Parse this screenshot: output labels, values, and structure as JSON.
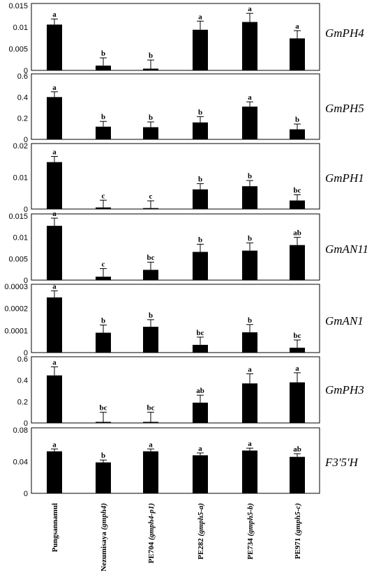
{
  "chart_data": {
    "type": "bar",
    "categories": [
      {
        "name": "Pungsannamul",
        "genotype": ""
      },
      {
        "name": "Nezumisaya",
        "genotype": "gmph4"
      },
      {
        "name": "PE704",
        "genotype": "gmph4-p1"
      },
      {
        "name": "PE282",
        "genotype": "gmph5-a"
      },
      {
        "name": "PE734",
        "genotype": "gmph5-b"
      },
      {
        "name": "PE971",
        "genotype": "gmph5-c"
      }
    ],
    "panels": [
      {
        "gene": "GmPH4",
        "ylim": [
          0,
          0.015
        ],
        "ticks": [
          "0",
          "0.005",
          "0.01",
          "0.015"
        ],
        "tick_values": [
          0,
          0.005,
          0.01,
          0.015
        ],
        "values": [
          0.0106,
          0.0011,
          0.0004,
          0.0094,
          0.0112,
          0.0074
        ],
        "errors": [
          0.0013,
          0.0018,
          0.002,
          0.002,
          0.002,
          0.0018
        ],
        "letters": [
          "a",
          "b",
          "b",
          "a",
          "a",
          "a"
        ]
      },
      {
        "gene": "GmPH5",
        "ylim": [
          0,
          0.6
        ],
        "ticks": [
          "0",
          "0.2",
          "0.4",
          "0.6"
        ],
        "tick_values": [
          0,
          0.2,
          0.4,
          0.6
        ],
        "values": [
          0.4,
          0.12,
          0.115,
          0.16,
          0.31,
          0.095
        ],
        "errors": [
          0.05,
          0.05,
          0.05,
          0.055,
          0.045,
          0.05
        ],
        "letters": [
          "a",
          "b",
          "b",
          "b",
          "a",
          "b"
        ]
      },
      {
        "gene": "GmPH1",
        "ylim": [
          0,
          0.02
        ],
        "ticks": [
          "0",
          "0.01",
          "0.02"
        ],
        "tick_values": [
          0,
          0.01,
          0.02
        ],
        "values": [
          0.0148,
          0.0005,
          0.0003,
          0.0062,
          0.0072,
          0.0027
        ],
        "errors": [
          0.0018,
          0.0023,
          0.0023,
          0.0018,
          0.0018,
          0.0018
        ],
        "letters": [
          "a",
          "c",
          "c",
          "b",
          "b",
          "bc"
        ]
      },
      {
        "gene": "GmAN11",
        "ylim": [
          0,
          0.015
        ],
        "ticks": [
          "0",
          "0.005",
          "0.01",
          "0.015"
        ],
        "tick_values": [
          0,
          0.005,
          0.01,
          0.015
        ],
        "values": [
          0.0127,
          0.0008,
          0.0024,
          0.0066,
          0.0069,
          0.0082
        ],
        "errors": [
          0.0018,
          0.0019,
          0.0018,
          0.0018,
          0.0018,
          0.0018
        ],
        "letters": [
          "a",
          "c",
          "bc",
          "b",
          "b",
          "ab"
        ]
      },
      {
        "gene": "GmAN1",
        "ylim": [
          0,
          0.0003
        ],
        "ticks": [
          "0",
          "0.0001",
          "0.0002",
          "0.0003"
        ],
        "tick_values": [
          0,
          0.0001,
          0.0002,
          0.0003
        ],
        "values": [
          0.00025,
          9e-05,
          0.000117,
          3.5e-05,
          9.2e-05,
          2.2e-05
        ],
        "errors": [
          3e-05,
          3.5e-05,
          3.2e-05,
          3.5e-05,
          3.5e-05,
          3.5e-05
        ],
        "letters": [
          "a",
          "b",
          "b",
          "bc",
          "b",
          "bc"
        ]
      },
      {
        "gene": "GmPH3",
        "ylim": [
          0,
          0.6
        ],
        "ticks": [
          "0",
          "0.2",
          "0.4",
          "0.6"
        ],
        "tick_values": [
          0,
          0.2,
          0.4,
          0.6
        ],
        "values": [
          0.445,
          0.01,
          0.01,
          0.19,
          0.37,
          0.38
        ],
        "errors": [
          0.08,
          0.09,
          0.09,
          0.07,
          0.09,
          0.09
        ],
        "letters": [
          "a",
          "bc",
          "bc",
          "ab",
          "a",
          "a"
        ]
      },
      {
        "gene": "F3'5'H",
        "ylim": [
          0,
          0.08
        ],
        "ticks": [
          "0",
          "0.04",
          "0.08"
        ],
        "tick_values": [
          0,
          0.04,
          0.08
        ],
        "values": [
          0.053,
          0.039,
          0.053,
          0.048,
          0.054,
          0.046
        ],
        "errors": [
          0.003,
          0.003,
          0.003,
          0.003,
          0.003,
          0.004
        ],
        "letters": [
          "a",
          "b",
          "a",
          "a",
          "a",
          "ab"
        ]
      }
    ]
  }
}
